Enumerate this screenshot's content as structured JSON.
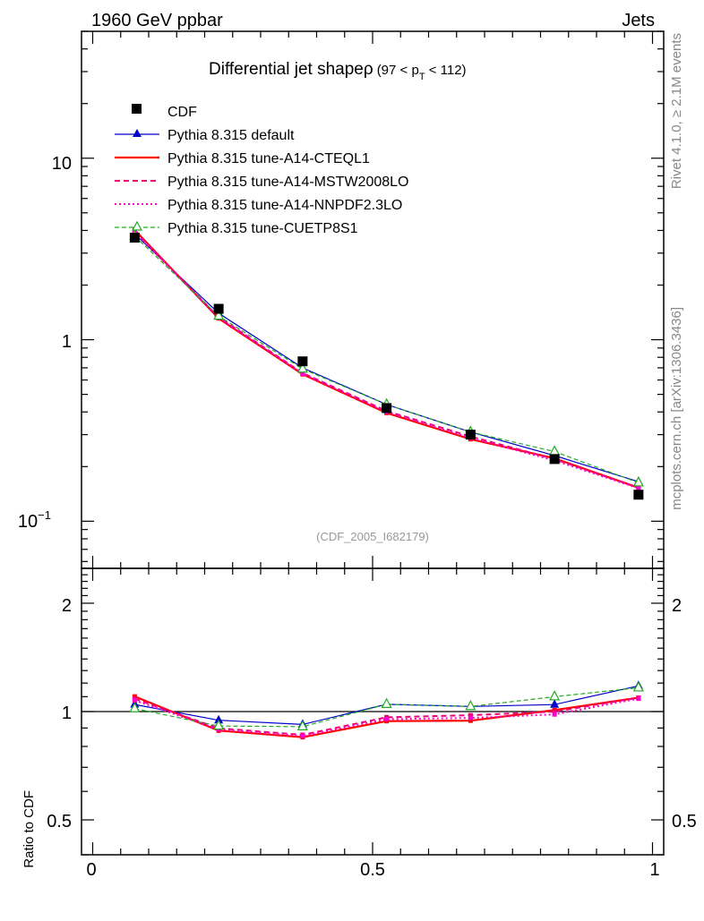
{
  "header": {
    "left": "1960 GeV ppbar",
    "right": "Jets"
  },
  "side_labels": {
    "rivet": "Rivet 4.1.0, ≥ 2.1M events",
    "mcplots": "mcplots.cern.ch [arXiv:1306.3436]"
  },
  "analysis_id": "(CDF_2005_I682179)",
  "chart_data": {
    "type": "line",
    "title": "Differential jet shape",
    "title_rho": "ρ",
    "title_range": {
      "open": "(97 < p",
      "sub": "T",
      "close": " < 112)"
    },
    "x": [
      0.075,
      0.225,
      0.375,
      0.525,
      0.675,
      0.825,
      0.975
    ],
    "xlim": [
      -0.02,
      1.02
    ],
    "x_ticks": [
      {
        "value": 0,
        "label": "0"
      },
      {
        "value": 0.5,
        "label": "0.5"
      },
      {
        "value": 1,
        "label": "1"
      }
    ],
    "main": {
      "yscale": "log",
      "ylim": [
        0.055,
        50
      ],
      "y_tick_labels": [
        {
          "value": 10,
          "label": "10"
        },
        {
          "value": 1,
          "label": "1"
        },
        {
          "value": 0.1,
          "base": "10",
          "exp": "−1"
        }
      ]
    },
    "ratio": {
      "ylabel": "Ratio to CDF",
      "yscale": "log",
      "ylim": [
        0.4,
        2.5
      ],
      "reference": 1,
      "y_tick_labels": [
        {
          "value": 2,
          "label": "2"
        },
        {
          "value": 1,
          "label": "1"
        },
        {
          "value": 0.5,
          "label": "0.5"
        }
      ]
    },
    "data": {
      "name": "CDF",
      "values": [
        3.65,
        1.48,
        0.76,
        0.42,
        0.3,
        0.22,
        0.14
      ]
    },
    "series": [
      {
        "name": "Pythia 8.315 default",
        "color": "#0000cc",
        "dash": "",
        "marker": "triangle-filled",
        "width": 1.2,
        "values": [
          3.82,
          1.4,
          0.7,
          0.44,
          0.31,
          0.23,
          0.165
        ]
      },
      {
        "name": "Pythia 8.315 tune-A14-CTEQL1",
        "color": "#ff0000",
        "dash": "",
        "marker": "none",
        "width": 2.2,
        "values": [
          4.02,
          1.31,
          0.645,
          0.395,
          0.283,
          0.222,
          0.153
        ]
      },
      {
        "name": "Pythia 8.315 tune-A14-MSTW2008LO",
        "color": "#ee0077",
        "dash": "6,4",
        "marker": "none",
        "width": 2.0,
        "values": [
          3.96,
          1.33,
          0.655,
          0.405,
          0.293,
          0.22,
          0.153
        ]
      },
      {
        "name": "Pythia 8.315 tune-A14-NNPDF2.3LO",
        "color": "#ff00cc",
        "dash": "2,3",
        "marker": "none",
        "width": 2.0,
        "values": [
          3.92,
          1.32,
          0.65,
          0.4,
          0.288,
          0.216,
          0.152
        ]
      },
      {
        "name": "Pythia 8.315 tune-CUETP8S1",
        "color": "#22aa22",
        "dash": "5,3",
        "marker": "triangle-open",
        "width": 1.2,
        "values": [
          3.72,
          1.35,
          0.69,
          0.44,
          0.31,
          0.242,
          0.163
        ]
      }
    ]
  }
}
